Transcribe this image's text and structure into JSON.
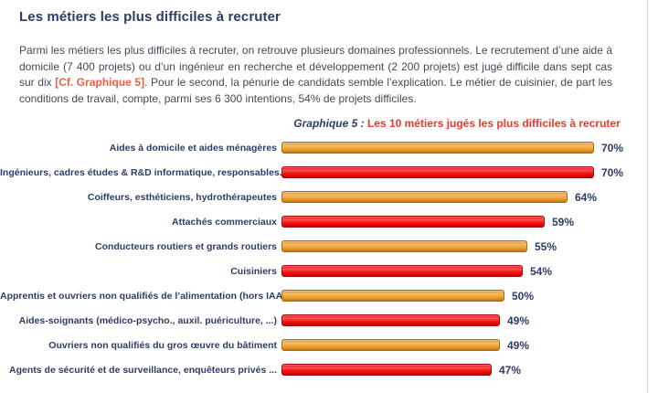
{
  "page": {
    "title": "Les métiers les plus difficiles à recruter",
    "paragraph": {
      "part1": "Parmi les métiers les plus difficiles à recruter, on retrouve plusieurs domaines professionnels. Le recrutement d’une aide à domicile (7 400 projets) ou d’un ingénieur en recherche et développement (2 200 projets) est jugé difficile dans sept cas sur dix ",
      "citation": "[Cf. Graphique 5]",
      "part2": ". Pour le second, la pénurie de candidats semble l’explication. Le métier de cuisinier, de part les conditions de travail, compte, parmi ses 6 300 intentions, 54% de projets difficiles."
    }
  },
  "chart_title": {
    "prefix": "Graphique 5 :",
    "text": " Les 10 métiers jugés les plus difficiles à recruter"
  },
  "chart_data": {
    "type": "bar",
    "orientation": "horizontal",
    "title": "Les 10 métiers jugés les plus difficiles à recruter",
    "categories": [
      "Aides à domicile et aides ménagères",
      "Ingénieurs, cadres études & R&D informatique, responsables...",
      "Coiffeurs, esthéticiens, hydrothérapeutes",
      "Attachés commerciaux",
      "Conducteurs routiers et grands routiers",
      "Cuisiniers",
      "Apprentis et ouvriers non qualifiés de l’alimentation (hors IAA)",
      "Aides-soignants (médico-psycho., auxil. puériculture, ...)",
      "Ouvriers non qualifiés du gros œuvre du bâtiment",
      "Agents de sécurité et de surveillance, enquêteurs privés ..."
    ],
    "values": [
      70,
      70,
      64,
      59,
      55,
      54,
      50,
      49,
      49,
      47
    ],
    "value_suffix": "%",
    "xlim": [
      0,
      70
    ],
    "bar_color_pattern": "alternating",
    "grid": false,
    "legend": "none",
    "value_labels_position": "end-of-bar"
  },
  "colors": {
    "heading": "#2e3d66",
    "body_text": "#474757",
    "citation_red": "#ee5f43",
    "chart_title_red": "#f0382b",
    "bar_orange": "#efa53c",
    "bar_orange_border": "#a8690f",
    "bar_red": "#f51616",
    "bar_red_border": "#a50b0b",
    "page_edge": "#d8d8d8"
  }
}
